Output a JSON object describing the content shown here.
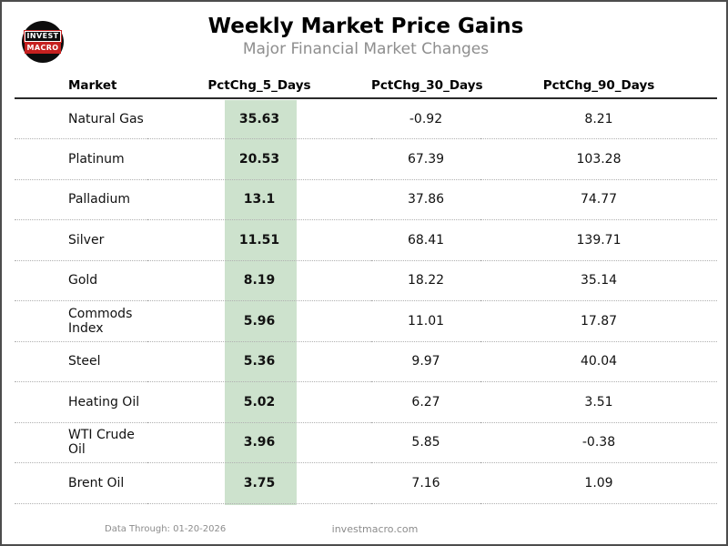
{
  "page": {
    "title": "Weekly Market Price Gains",
    "subtitle": "Major Financial Market Changes",
    "logo": {
      "line1": "INVEST",
      "line2": "MACRO"
    },
    "footer": {
      "data_through": "Data Through: 01-20-2026",
      "website": "investmacro.com"
    },
    "colors": {
      "highlight_green": "#cde2cd",
      "logo_red": "#c5201f",
      "subtitle_gray": "#8e8e8e",
      "footer_gray": "#8c8c8c",
      "page_border": "#4c4c4c"
    }
  },
  "chart_data": {
    "type": "table",
    "title": "Weekly Market Price Gains",
    "subtitle": "Major Financial Market Changes",
    "columns": [
      "Market",
      "PctChg_5_Days",
      "PctChg_30_Days",
      "PctChg_90_Days"
    ],
    "highlight_column": "PctChg_5_Days",
    "highlight_color": "#cde2cd",
    "rows": [
      {
        "market": "Natural Gas",
        "pct5": 35.63,
        "pct30": -0.92,
        "pct90": 8.21
      },
      {
        "market": "Platinum",
        "pct5": 20.53,
        "pct30": 67.39,
        "pct90": 103.28
      },
      {
        "market": "Palladium",
        "pct5": 13.1,
        "pct30": 37.86,
        "pct90": 74.77
      },
      {
        "market": "Silver",
        "pct5": 11.51,
        "pct30": 68.41,
        "pct90": 139.71
      },
      {
        "market": "Gold",
        "pct5": 8.19,
        "pct30": 18.22,
        "pct90": 35.14
      },
      {
        "market": "Commods Index",
        "pct5": 5.96,
        "pct30": 11.01,
        "pct90": 17.87
      },
      {
        "market": "Steel",
        "pct5": 5.36,
        "pct30": 9.97,
        "pct90": 40.04
      },
      {
        "market": "Heating Oil",
        "pct5": 5.02,
        "pct30": 6.27,
        "pct90": 3.51
      },
      {
        "market": "WTI Crude Oil",
        "pct5": 3.96,
        "pct30": 5.85,
        "pct90": -0.38
      },
      {
        "market": "Brent Oil",
        "pct5": 3.75,
        "pct30": 7.16,
        "pct90": 1.09
      }
    ]
  }
}
